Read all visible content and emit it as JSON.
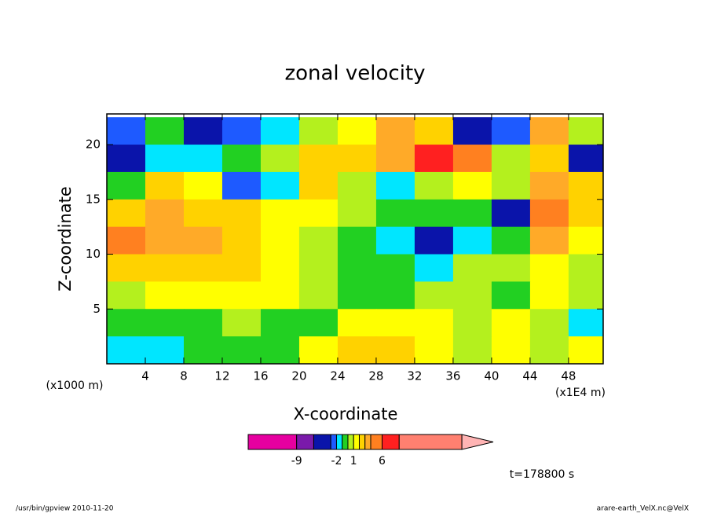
{
  "chart_data": {
    "type": "contour",
    "title": "zonal velocity",
    "x_label": "X-coordinate",
    "y_label": "Z-coordinate",
    "x_unit_left": "(x1000 m)",
    "x_unit_right": "(x1E4 m)",
    "time_label": "t=178800 s",
    "footer_left": "/usr/bin/gpview  2010-11-20",
    "footer_right": "arare-earth_VelX.nc@VelX",
    "xlim": [
      0,
      51.6
    ],
    "ylim": [
      0,
      22.8
    ],
    "xticks": [
      4,
      8,
      12,
      16,
      20,
      24,
      28,
      32,
      36,
      40,
      44,
      48
    ],
    "yticks": [
      5,
      10,
      15,
      20
    ],
    "x": [
      2,
      6,
      10,
      14,
      18,
      22,
      26,
      30,
      34,
      38,
      42,
      46,
      50
    ],
    "y": [
      21.25,
      18.75,
      16.25,
      13.75,
      11.25,
      8.75,
      6.25,
      3.75,
      1.25
    ],
    "z": [
      [
        -3,
        -1,
        -4,
        -3,
        -2,
        0.5,
        1.5,
        3,
        2.5,
        -4,
        -3,
        3,
        0.5
      ],
      [
        -6,
        -1.5,
        -2,
        -1,
        0.5,
        2.5,
        2,
        3,
        6,
        5,
        0,
        2,
        -4
      ],
      [
        -1,
        2.5,
        1.5,
        -3,
        -2,
        2.5,
        0.5,
        -1.5,
        0.5,
        1,
        0.5,
        3,
        2
      ],
      [
        2.5,
        3,
        2.5,
        2,
        1.5,
        1.5,
        0.5,
        -1,
        -0.5,
        -1,
        -4,
        5,
        2.5
      ],
      [
        5,
        3,
        3,
        2.5,
        1.5,
        0.5,
        -0.5,
        -1.5,
        -5,
        -1.5,
        -1,
        3,
        1
      ],
      [
        2.5,
        2.5,
        2.5,
        2,
        1.5,
        0.5,
        -0.5,
        -0.5,
        -1.5,
        0.5,
        0,
        1,
        0.5
      ],
      [
        0.5,
        1.5,
        1.5,
        1.5,
        1.5,
        0.5,
        -0.5,
        -0.5,
        0.5,
        0.5,
        -1,
        1.5,
        0.5
      ],
      [
        -0.5,
        -0.5,
        -0.5,
        0.5,
        -0.5,
        -0.5,
        1.5,
        1.5,
        1.5,
        0.5,
        1.5,
        0.5,
        -1.5
      ],
      [
        -1.5,
        -1.5,
        -0.5,
        -0.5,
        -0.5,
        1.5,
        2.5,
        2.5,
        1.5,
        0.5,
        1.5,
        0.5,
        1.5
      ]
    ],
    "colorbar": {
      "lim": [
        -17.5,
        25.5
      ],
      "levels": [
        -17.5,
        -9,
        -6,
        -3,
        -2,
        -1,
        0,
        1,
        2,
        3,
        4,
        6,
        9,
        20
      ],
      "colors": [
        "#e600a0",
        "#7a1aaa",
        "#0a14aa",
        "#1e5aff",
        "#00e6ff",
        "#22d022",
        "#b4f01e",
        "#ffff00",
        "#ffd200",
        "#ffaa28",
        "#ff8020",
        "#ff2020",
        "#ff8070"
      ],
      "extend_color": "#ffb4b4",
      "ticks": [
        -9,
        -2,
        1,
        6
      ]
    }
  }
}
